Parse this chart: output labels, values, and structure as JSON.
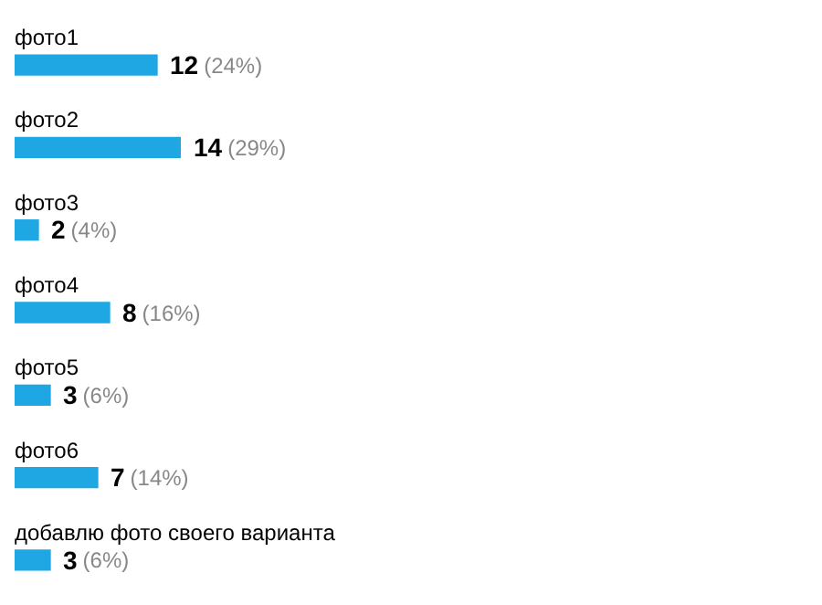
{
  "chart_data": {
    "type": "bar",
    "orientation": "horizontal",
    "categories": [
      "фото1",
      "фото2",
      "фото3",
      "фото4",
      "фото5",
      "фото6",
      "добавлю фото своего варианта"
    ],
    "values": [
      12,
      14,
      2,
      8,
      3,
      7,
      3
    ],
    "value_labels": [
      "12 (24%)",
      "14 (29%)",
      "2 (4%)",
      "8 (16%)",
      "3 (6%)",
      "7 (14%)",
      "3 (6%)"
    ],
    "color": "#1ea7e3"
  }
}
